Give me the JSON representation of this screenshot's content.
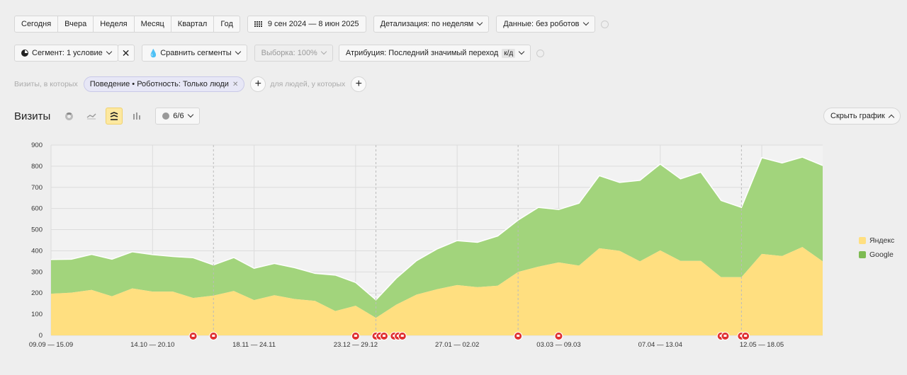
{
  "periods": [
    "Сегодня",
    "Вчера",
    "Неделя",
    "Месяц",
    "Квартал",
    "Год"
  ],
  "date_range": "9 сен 2024 — 8 июн 2025",
  "detail": "Детализация: по неделям",
  "data_filter": "Данные: без роботов",
  "segment": "Сегмент: 1 условие",
  "compare": "Сравнить сегменты",
  "sample": "Выборка: 100%",
  "attribution": "Атрибуция: Последний значимый переход",
  "attribution_tag": "к/д",
  "visits_where": "Визиты, в которых",
  "filter_chip": "Поведение • Роботность: Только люди",
  "people_where": "для людей, у которых",
  "chart_title": "Визиты",
  "series_count": "6/6",
  "hide_chart": "Скрыть график",
  "colors": {
    "yandex": "#ffdf80",
    "google": "#a2d47c",
    "annotation": "#e03030"
  },
  "chart_data": {
    "type": "area",
    "stacked": true,
    "ylim": [
      0,
      900
    ],
    "yticks": [
      0,
      100,
      200,
      300,
      400,
      500,
      600,
      700,
      800,
      900
    ],
    "xtick_labels": [
      "09.09 — 15.09",
      "14.10 — 20.10",
      "18.11 — 24.11",
      "23.12 — 29.12",
      "27.01 — 02.02",
      "03.03 — 09.03",
      "07.04 — 13.04",
      "12.05 — 18.05"
    ],
    "xtick_index": [
      0,
      5,
      10,
      15,
      20,
      25,
      30,
      35
    ],
    "legend": "right",
    "series": [
      {
        "name": "Яндекс",
        "values": [
          197,
          202,
          215,
          185,
          222,
          207,
          207,
          177,
          188,
          210,
          167,
          190,
          172,
          163,
          115,
          140,
          83,
          145,
          193,
          218,
          238,
          228,
          235,
          300,
          325,
          345,
          330,
          412,
          400,
          350,
          402,
          352,
          352,
          275,
          275,
          385,
          375,
          418,
          350
        ]
      },
      {
        "name": "Google",
        "values": [
          162,
          158,
          168,
          175,
          173,
          175,
          166,
          190,
          145,
          158,
          150,
          150,
          148,
          130,
          170,
          110,
          85,
          125,
          160,
          190,
          210,
          212,
          235,
          245,
          280,
          250,
          295,
          343,
          323,
          383,
          408,
          388,
          420,
          363,
          330,
          455,
          440,
          425,
          453
        ]
      }
    ],
    "annotation_points": [
      7,
      8,
      15,
      16,
      16.2,
      16.4,
      16.9,
      17.1,
      17.3,
      23,
      25,
      33,
      33.2,
      34,
      34.2
    ]
  }
}
